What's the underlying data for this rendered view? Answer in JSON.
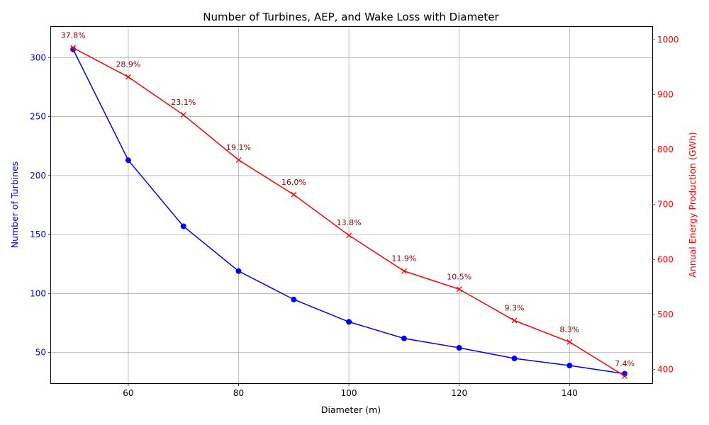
{
  "chart_data": {
    "type": "line",
    "title": "Number of Turbines, AEP, and Wake Loss with Diameter",
    "xlabel": "Diameter (m)",
    "ylabel_left": "Number of Turbines",
    "ylabel_right": "Annual Energy Production (GWh)",
    "xlim": [
      46,
      155
    ],
    "ylim_left": [
      24,
      326
    ],
    "ylim_right": [
      375,
      1023
    ],
    "x_ticks": [
      60,
      80,
      100,
      120,
      140
    ],
    "y_ticks_left": [
      50,
      100,
      150,
      200,
      250,
      300
    ],
    "y_ticks_right": [
      400,
      500,
      600,
      700,
      800,
      900,
      1000
    ],
    "grid": true,
    "x": [
      50,
      60,
      70,
      80,
      90,
      100,
      110,
      120,
      130,
      140,
      150
    ],
    "series": [
      {
        "name": "Number of Turbines",
        "axis": "left",
        "color": "#0000ff",
        "marker": "circle",
        "values": [
          307,
          213,
          157,
          119,
          95,
          76,
          62,
          54,
          45,
          39,
          32
        ]
      },
      {
        "name": "Annual Energy Production (GWh)",
        "axis": "right",
        "color": "#ff0000",
        "marker": "x",
        "values": [
          985,
          932,
          863,
          781,
          718,
          644,
          579,
          546,
          489,
          450,
          388
        ]
      }
    ],
    "annotations": [
      "37.8%",
      "28.9%",
      "23.1%",
      "19.1%",
      "16.0%",
      "13.8%",
      "11.9%",
      "10.5%",
      "9.3%",
      "8.3%",
      "7.4%"
    ],
    "annotation_color": "#8b0000",
    "left_axis_color": "#0000ff",
    "right_axis_color": "#ff0000"
  }
}
